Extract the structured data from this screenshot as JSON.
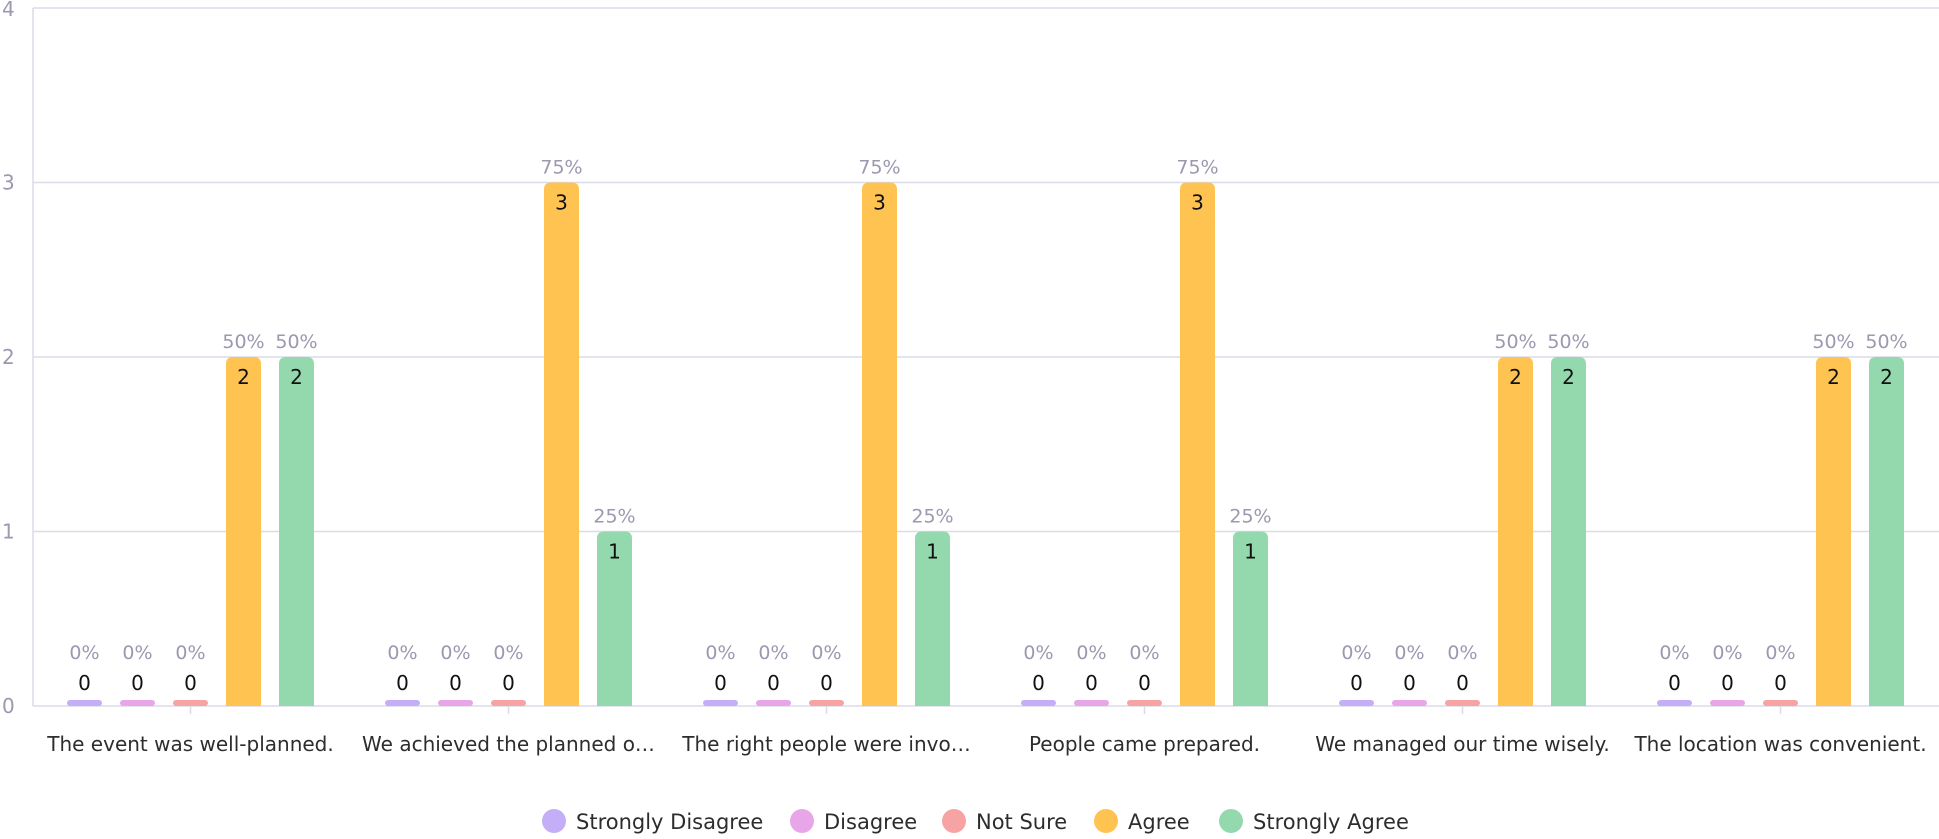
{
  "chart_data": {
    "type": "bar",
    "categories": [
      "The event was well-planned.",
      "We achieved the planned o…",
      "The right people were invo…",
      "People came prepared.",
      "We managed our time wisely.",
      "The location was convenient."
    ],
    "series": [
      {
        "name": "Strongly Disagree",
        "color": "#c4aef7",
        "values": [
          0,
          0,
          0,
          0,
          0,
          0
        ],
        "percent_labels": [
          "0%",
          "0%",
          "0%",
          "0%",
          "0%",
          "0%"
        ]
      },
      {
        "name": "Disagree",
        "color": "#e8a6e8",
        "values": [
          0,
          0,
          0,
          0,
          0,
          0
        ],
        "percent_labels": [
          "0%",
          "0%",
          "0%",
          "0%",
          "0%",
          "0%"
        ]
      },
      {
        "name": "Not Sure",
        "color": "#f7a3a3",
        "values": [
          0,
          0,
          0,
          0,
          0,
          0
        ],
        "percent_labels": [
          "0%",
          "0%",
          "0%",
          "0%",
          "0%",
          "0%"
        ]
      },
      {
        "name": "Agree",
        "color": "#ffc352",
        "values": [
          2,
          3,
          3,
          3,
          2,
          2
        ],
        "percent_labels": [
          "50%",
          "75%",
          "75%",
          "75%",
          "50%",
          "50%"
        ]
      },
      {
        "name": "Strongly Agree",
        "color": "#94d9ad",
        "values": [
          2,
          1,
          1,
          1,
          2,
          2
        ],
        "percent_labels": [
          "50%",
          "25%",
          "25%",
          "25%",
          "50%",
          "50%"
        ]
      }
    ],
    "ylim": [
      0,
      4
    ],
    "yticks": [
      0,
      1,
      2,
      3,
      4
    ],
    "grid": true,
    "legend_position": "bottom"
  }
}
